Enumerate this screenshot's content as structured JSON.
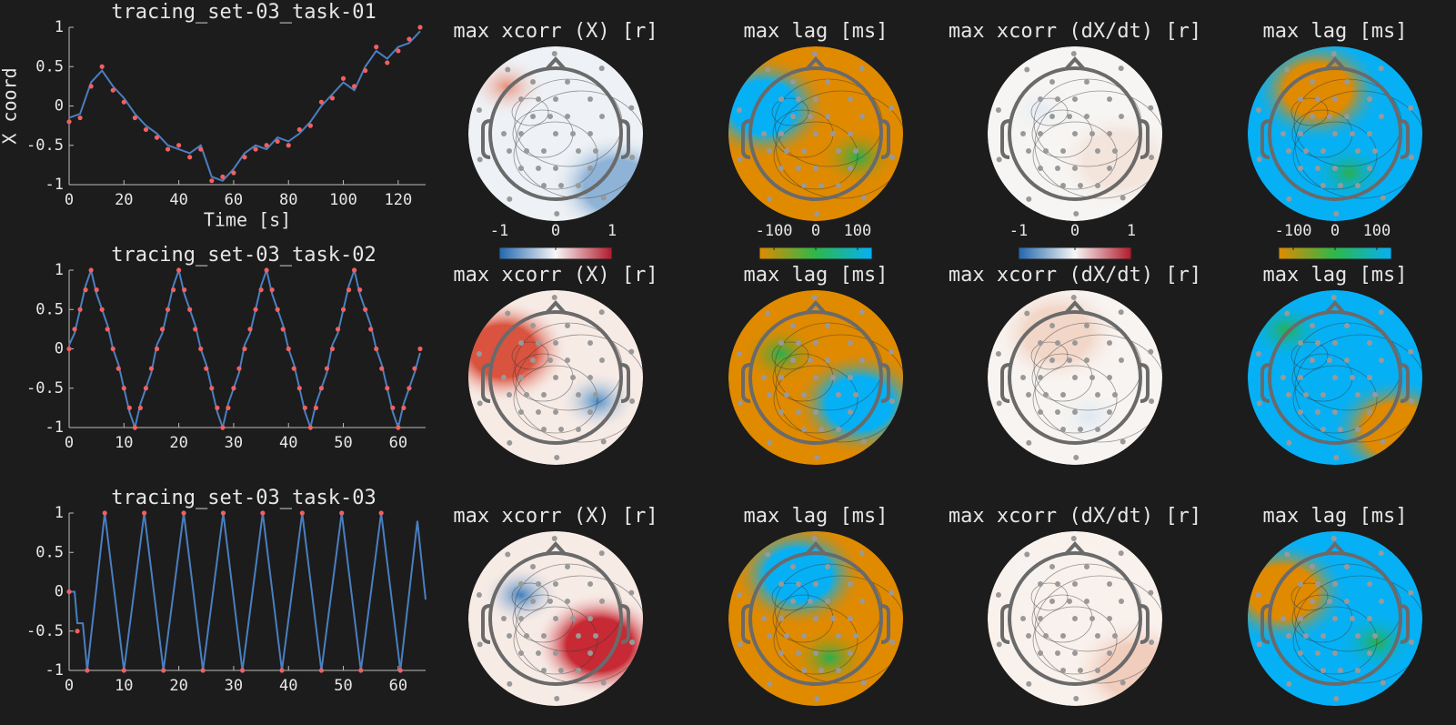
{
  "chart_data": [
    {
      "type": "line",
      "title": "tracing_set-03_task-01",
      "xlabel": "Time [s]",
      "ylabel": "X coord",
      "x": [
        0,
        4,
        8,
        12,
        16,
        20,
        24,
        28,
        32,
        36,
        40,
        44,
        48,
        52,
        56,
        60,
        64,
        68,
        72,
        76,
        80,
        84,
        88,
        92,
        96,
        100,
        104,
        108,
        112,
        116,
        120,
        124,
        128
      ],
      "series": [
        {
          "color": "#4a7fc0",
          "style": "line",
          "values": [
            -0.15,
            -0.1,
            0.3,
            0.45,
            0.25,
            0.1,
            -0.1,
            -0.25,
            -0.35,
            -0.5,
            -0.55,
            -0.6,
            -0.5,
            -0.9,
            -0.95,
            -0.8,
            -0.6,
            -0.5,
            -0.55,
            -0.4,
            -0.45,
            -0.35,
            -0.2,
            0,
            0.15,
            0.3,
            0.2,
            0.5,
            0.7,
            0.6,
            0.75,
            0.8,
            0.95
          ]
        },
        {
          "color": "#f06060",
          "style": "dots",
          "values": [
            -0.2,
            -0.15,
            0.25,
            0.5,
            0.2,
            0.05,
            -0.15,
            -0.3,
            -0.4,
            -0.55,
            -0.5,
            -0.65,
            -0.55,
            -0.95,
            -0.9,
            -0.85,
            -0.65,
            -0.55,
            -0.5,
            -0.45,
            -0.5,
            -0.3,
            -0.25,
            0.05,
            0.1,
            0.35,
            0.25,
            0.45,
            0.75,
            0.55,
            0.7,
            0.85,
            1
          ]
        }
      ],
      "xlim": [
        0,
        130
      ],
      "ylim": [
        -1,
        1
      ],
      "xticks": [
        0,
        20,
        40,
        60,
        80,
        100,
        120
      ],
      "yticks": [
        -1,
        -0.5,
        0,
        0.5,
        1
      ]
    },
    {
      "type": "topoplot",
      "title": "max xcorr (X) [r]",
      "colors": [
        "#eef1f5",
        "#8fb3d6",
        "#e8907a"
      ],
      "colormap": [
        "#2166ac",
        "#f7f7f7",
        "#b2182b"
      ],
      "clim": [
        -1,
        1
      ],
      "cticks": [
        -1,
        0,
        1
      ]
    },
    {
      "type": "topoplot",
      "title": "max lag [ms]",
      "colors": [
        "#e08a00",
        "#06b0f5",
        "#28b050"
      ],
      "colormap": [
        "#e08a00",
        "#2cb84a",
        "#06b0f5"
      ],
      "clim": [
        -135,
        135
      ],
      "cticks": [
        -100,
        0,
        100
      ]
    },
    {
      "type": "topoplot",
      "title": "max xcorr (dX/dt) [r]",
      "colors": [
        "#f7f5f3",
        "#f3e4dc",
        "#e4ebf3"
      ],
      "colormap": [
        "#2166ac",
        "#f7f7f7",
        "#b2182b"
      ],
      "clim": [
        -1,
        1
      ],
      "cticks": [
        -1,
        0,
        1
      ]
    },
    {
      "type": "topoplot",
      "title": "max lag [ms]",
      "colors": [
        "#06b0f5",
        "#e08a00",
        "#28b050"
      ],
      "colormap": [
        "#e08a00",
        "#2cb84a",
        "#06b0f5"
      ],
      "clim": [
        -135,
        135
      ],
      "cticks": [
        -100,
        0,
        100
      ]
    },
    {
      "type": "line",
      "title": "tracing_set-03_task-02",
      "x": [
        0,
        1,
        2,
        3,
        4,
        5,
        6,
        7,
        8,
        9,
        10,
        11,
        12,
        13,
        14,
        15,
        16,
        17,
        18,
        19,
        20,
        21,
        22,
        23,
        24,
        25,
        26,
        27,
        28,
        29,
        30,
        31,
        32,
        33,
        34,
        35,
        36,
        37,
        38,
        39,
        40,
        41,
        42,
        43,
        44,
        45,
        46,
        47,
        48,
        49,
        50,
        51,
        52,
        53,
        54,
        55,
        56,
        57,
        58,
        59,
        60,
        61,
        62,
        63,
        64
      ],
      "series": [
        {
          "color": "#4a7fc0",
          "style": "line",
          "values": [
            0.05,
            0.2,
            0.5,
            0.8,
            1,
            0.7,
            0.5,
            0.3,
            0,
            -0.2,
            -0.5,
            -0.8,
            -1,
            -0.7,
            -0.5,
            -0.3,
            0.05,
            0.2,
            0.5,
            0.8,
            1,
            0.7,
            0.5,
            0.3,
            0,
            -0.2,
            -0.5,
            -0.8,
            -1,
            -0.7,
            -0.5,
            -0.3,
            0.05,
            0.2,
            0.5,
            0.8,
            1,
            0.7,
            0.5,
            0.3,
            0,
            -0.2,
            -0.5,
            -0.8,
            -1,
            -0.7,
            -0.5,
            -0.3,
            0.05,
            0.2,
            0.5,
            0.8,
            1,
            0.7,
            0.5,
            0.3,
            0,
            -0.2,
            -0.5,
            -0.8,
            -1,
            -0.7,
            -0.5,
            -0.3,
            -0.05
          ]
        },
        {
          "color": "#f06060",
          "style": "dots",
          "values": [
            0,
            0.25,
            0.5,
            0.75,
            1,
            0.75,
            0.5,
            0.25,
            0,
            -0.25,
            -0.5,
            -0.75,
            -1,
            -0.75,
            -0.5,
            -0.25,
            0,
            0.25,
            0.5,
            0.75,
            1,
            0.75,
            0.5,
            0.25,
            0,
            -0.25,
            -0.5,
            -0.75,
            -1,
            -0.75,
            -0.5,
            -0.25,
            0,
            0.25,
            0.5,
            0.75,
            1,
            0.75,
            0.5,
            0.25,
            0,
            -0.25,
            -0.5,
            -0.75,
            -1,
            -0.75,
            -0.5,
            -0.25,
            0,
            0.25,
            0.5,
            0.75,
            1,
            0.75,
            0.5,
            0.25,
            0,
            -0.25,
            -0.5,
            -0.75,
            -1,
            -0.75,
            -0.5,
            -0.25,
            0
          ]
        }
      ],
      "xlim": [
        0,
        65
      ],
      "ylim": [
        -1,
        1
      ],
      "xticks": [
        0,
        10,
        20,
        30,
        40,
        50,
        60
      ],
      "yticks": [
        -1,
        -0.5,
        0,
        0.5,
        1
      ]
    },
    {
      "type": "topoplot",
      "title": "max xcorr (X) [r]",
      "colors": [
        "#f7ebe6",
        "#d9533f",
        "#4d8ec6"
      ]
    },
    {
      "type": "topoplot",
      "title": "max lag [ms]",
      "colors": [
        "#e08a00",
        "#06b0f5",
        "#28b050"
      ]
    },
    {
      "type": "topoplot",
      "title": "max xcorr (dX/dt) [r]",
      "colors": [
        "#f8f4f1",
        "#f2d7c9",
        "#dde8f2"
      ]
    },
    {
      "type": "topoplot",
      "title": "max lag [ms]",
      "colors": [
        "#06b0f5",
        "#e08a00",
        "#28b050"
      ]
    },
    {
      "type": "line",
      "title": "tracing_set-03_task-03",
      "x": [
        0,
        1,
        1.5,
        2.5,
        3.3,
        6.5,
        10,
        13.7,
        17.2,
        20.9,
        24.4,
        28.1,
        31.6,
        35.3,
        38.8,
        42.5,
        46,
        49.7,
        53.2,
        56.9,
        60.4,
        63.5,
        65
      ],
      "series": [
        {
          "color": "#4a7fc0",
          "style": "line",
          "values": [
            0,
            0,
            -0.4,
            -0.4,
            -1,
            1,
            -1,
            1,
            -1,
            1,
            -1,
            1,
            -1,
            1,
            -1,
            1,
            -1,
            1,
            -1,
            1,
            -1,
            0.9,
            -0.1
          ]
        },
        {
          "color": "#f06060",
          "style": "dots",
          "values": [
            0,
            null,
            -0.5,
            null,
            -1,
            1,
            -1,
            1,
            -1,
            1,
            -1,
            1,
            -1,
            1,
            -1,
            1,
            -1,
            1,
            -1,
            1,
            -1,
            null,
            null
          ]
        }
      ],
      "xlim": [
        0,
        65
      ],
      "ylim": [
        -1,
        1
      ],
      "xticks": [
        0,
        10,
        20,
        30,
        40,
        50,
        60
      ],
      "yticks": [
        -1,
        -0.5,
        0,
        0.5,
        1
      ]
    },
    {
      "type": "topoplot",
      "title": "max xcorr (X) [r]",
      "colors": [
        "#f7ebe6",
        "#c72a34",
        "#3f7fbf"
      ]
    },
    {
      "type": "topoplot",
      "title": "max lag [ms]",
      "colors": [
        "#e08a00",
        "#06b0f5",
        "#28b050"
      ]
    },
    {
      "type": "topoplot",
      "title": "max xcorr (dX/dt) [r]",
      "colors": [
        "#f9f1ec",
        "#f1cdbd",
        "#f4f4f4"
      ]
    },
    {
      "type": "topoplot",
      "title": "max lag [ms]",
      "colors": [
        "#06b0f5",
        "#e08a00",
        "#28b050"
      ]
    }
  ]
}
